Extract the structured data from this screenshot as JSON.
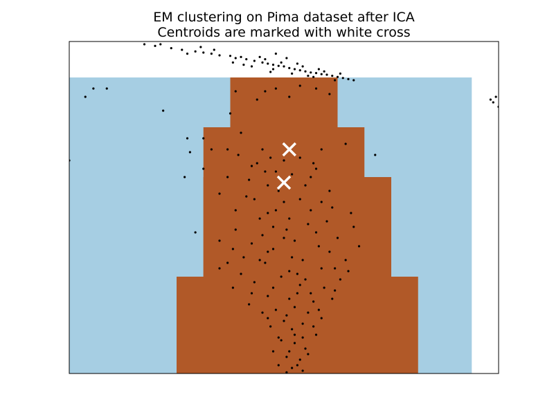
{
  "chart_data": {
    "type": "scatter",
    "title": "EM clustering on Pima dataset after ICA",
    "subtitle": "Centroids are marked with white cross",
    "xlabel": "",
    "ylabel": "",
    "xlim": [
      -4.0,
      4.0
    ],
    "ylim": [
      -5.0,
      1.0
    ],
    "grid": false,
    "axis_ticks": false,
    "background_regions": {
      "colors": {
        "cluster_0": "#a6cee3",
        "cluster_1": "#b15928",
        "outside": "#ffffff"
      },
      "cells": [
        {
          "x0": -4.0,
          "x1": 3.5,
          "y0": -5.0,
          "y1": 0.35,
          "cluster": "cluster_0"
        },
        {
          "x0": -1.0,
          "x1": 1.0,
          "y0": -5.0,
          "y1": 0.35,
          "cluster": "cluster_1"
        },
        {
          "x0": -1.5,
          "x1": 1.5,
          "y0": -5.0,
          "y1": -0.55,
          "cluster": "cluster_1"
        },
        {
          "x0": -1.5,
          "x1": 2.0,
          "y0": -5.0,
          "y1": -1.45,
          "cluster": "cluster_1"
        },
        {
          "x0": -2.0,
          "x1": 2.5,
          "y0": -5.0,
          "y1": -3.25,
          "cluster": "cluster_1"
        }
      ]
    },
    "centroids": [
      {
        "x": 0.1,
        "y": -0.95
      },
      {
        "x": 0.0,
        "y": -1.55
      }
    ],
    "series": [
      {
        "color": "#000000",
        "points": [
          [
            -2.6,
            0.95
          ],
          [
            -2.4,
            0.92
          ],
          [
            -2.1,
            0.88
          ],
          [
            -1.9,
            0.85
          ],
          [
            -1.65,
            0.82
          ],
          [
            -1.5,
            0.8
          ],
          [
            -1.35,
            0.78
          ],
          [
            -1.2,
            0.75
          ],
          [
            -1.0,
            0.74
          ],
          [
            -0.9,
            0.7
          ],
          [
            -0.8,
            0.72
          ],
          [
            -0.7,
            0.68
          ],
          [
            -0.55,
            0.65
          ],
          [
            -0.4,
            0.62
          ],
          [
            -0.3,
            0.6
          ],
          [
            -0.2,
            0.58
          ],
          [
            -0.1,
            0.56
          ],
          [
            0.0,
            0.55
          ],
          [
            0.1,
            0.52
          ],
          [
            0.2,
            0.5
          ],
          [
            0.3,
            0.48
          ],
          [
            0.4,
            0.46
          ],
          [
            0.5,
            0.44
          ],
          [
            0.6,
            0.43
          ],
          [
            0.7,
            0.41
          ],
          [
            0.8,
            0.4
          ],
          [
            0.9,
            0.38
          ],
          [
            1.0,
            0.36
          ],
          [
            1.1,
            0.34
          ],
          [
            1.2,
            0.32
          ],
          [
            1.3,
            0.3
          ],
          [
            -0.6,
            0.55
          ],
          [
            -0.2,
            0.5
          ],
          [
            0.15,
            0.42
          ],
          [
            0.45,
            0.38
          ],
          [
            -0.35,
            0.68
          ],
          [
            0.25,
            0.6
          ],
          [
            0.65,
            0.5
          ],
          [
            -1.55,
            0.9
          ],
          [
            -1.8,
            0.78
          ],
          [
            0.05,
            0.7
          ],
          [
            0.35,
            0.55
          ],
          [
            0.75,
            0.46
          ],
          [
            -0.05,
            0.62
          ],
          [
            -0.45,
            0.72
          ],
          [
            -0.95,
            0.62
          ],
          [
            -1.3,
            0.85
          ],
          [
            -2.3,
            0.95
          ],
          [
            0.55,
            0.36
          ],
          [
            1.05,
            0.42
          ],
          [
            -0.25,
            0.45
          ],
          [
            -0.75,
            0.58
          ],
          [
            -0.15,
            0.78
          ],
          [
            0.95,
            0.3
          ],
          [
            -3.55,
            0.15
          ],
          [
            -3.7,
            0.0
          ],
          [
            -3.3,
            0.15
          ],
          [
            3.85,
            -0.05
          ],
          [
            3.95,
            0.0
          ],
          [
            3.9,
            -0.1
          ],
          [
            4.0,
            -0.18
          ],
          [
            -0.15,
            0.15
          ],
          [
            0.3,
            0.2
          ],
          [
            0.6,
            0.15
          ],
          [
            0.85,
            0.05
          ],
          [
            0.1,
            0.0
          ],
          [
            -0.35,
            0.1
          ],
          [
            -0.5,
            -0.05
          ],
          [
            -0.9,
            0.1
          ],
          [
            -1.0,
            -0.3
          ],
          [
            -0.8,
            -0.65
          ],
          [
            -1.35,
            -0.95
          ],
          [
            -1.05,
            -0.95
          ],
          [
            -0.85,
            -1.05
          ],
          [
            -0.5,
            -1.2
          ],
          [
            -0.4,
            -0.95
          ],
          [
            -0.6,
            -1.25
          ],
          [
            0.3,
            -1.1
          ],
          [
            0.6,
            -1.3
          ],
          [
            0.7,
            -0.95
          ],
          [
            0.5,
            -1.45
          ],
          [
            -1.75,
            -1.0
          ],
          [
            -1.85,
            -1.45
          ],
          [
            -1.5,
            -1.3
          ],
          [
            -1.8,
            -0.75
          ],
          [
            -1.5,
            -0.75
          ],
          [
            1.15,
            -0.85
          ],
          [
            1.7,
            -1.05
          ],
          [
            -2.25,
            -0.25
          ],
          [
            -4.0,
            -1.15
          ],
          [
            -1.65,
            -2.45
          ],
          [
            -1.2,
            -1.75
          ],
          [
            -0.7,
            -1.8
          ],
          [
            -0.3,
            -2.1
          ],
          [
            0.0,
            -1.9
          ],
          [
            0.5,
            -2.05
          ],
          [
            0.8,
            -2.25
          ],
          [
            -0.9,
            -2.4
          ],
          [
            -0.4,
            -2.5
          ],
          [
            0.2,
            -2.6
          ],
          [
            0.6,
            -2.45
          ],
          [
            1.0,
            -2.55
          ],
          [
            1.4,
            -2.7
          ],
          [
            -1.2,
            -2.6
          ],
          [
            -0.75,
            -2.9
          ],
          [
            -0.2,
            -2.75
          ],
          [
            0.35,
            -2.95
          ],
          [
            0.85,
            -2.8
          ],
          [
            1.15,
            -2.95
          ],
          [
            -0.35,
            -3.0
          ],
          [
            0.1,
            -3.15
          ],
          [
            -0.55,
            -3.35
          ],
          [
            0.4,
            -3.3
          ],
          [
            0.75,
            -3.45
          ],
          [
            1.05,
            -3.3
          ],
          [
            -1.2,
            -3.1
          ],
          [
            -0.95,
            -3.45
          ],
          [
            -0.3,
            -3.6
          ],
          [
            0.25,
            -3.55
          ],
          [
            0.55,
            -3.7
          ],
          [
            0.9,
            -3.65
          ],
          [
            -0.15,
            -3.85
          ],
          [
            0.05,
            -3.95
          ],
          [
            0.45,
            -3.9
          ],
          [
            0.7,
            -4.0
          ],
          [
            -0.25,
            -4.15
          ],
          [
            0.15,
            -4.2
          ],
          [
            0.35,
            -4.1
          ],
          [
            -0.1,
            -4.35
          ],
          [
            0.2,
            -4.45
          ],
          [
            0.4,
            -4.55
          ],
          [
            0.6,
            -4.3
          ],
          [
            -0.2,
            -4.6
          ],
          [
            0.05,
            -4.7
          ],
          [
            0.3,
            -4.75
          ],
          [
            0.15,
            -4.9
          ],
          [
            0.05,
            -4.98
          ],
          [
            0.25,
            -4.85
          ],
          [
            -0.3,
            -1.6
          ],
          [
            -0.1,
            -1.7
          ],
          [
            0.1,
            -2.2
          ],
          [
            0.3,
            -1.85
          ],
          [
            -0.2,
            -2.35
          ],
          [
            0.0,
            -2.55
          ],
          [
            0.15,
            -2.9
          ],
          [
            -0.05,
            -3.25
          ],
          [
            0.3,
            -3.4
          ],
          [
            0.1,
            -3.65
          ],
          [
            -0.4,
            -3.9
          ],
          [
            0.55,
            -4.15
          ],
          [
            -0.05,
            -4.4
          ],
          [
            0.35,
            -4.35
          ],
          [
            -0.45,
            -2.2
          ],
          [
            0.45,
            -2.3
          ],
          [
            0.65,
            -2.7
          ],
          [
            -0.6,
            -2.65
          ],
          [
            0.95,
            -3.1
          ],
          [
            -0.8,
            -3.2
          ],
          [
            -1.05,
            -1.45
          ],
          [
            -0.65,
            -1.5
          ],
          [
            -0.15,
            -1.35
          ],
          [
            0.4,
            -1.6
          ],
          [
            0.85,
            -1.7
          ],
          [
            1.25,
            -2.1
          ],
          [
            -0.45,
            -2.95
          ],
          [
            0.25,
            -3.2
          ],
          [
            0.0,
            -4.05
          ],
          [
            0.1,
            -4.6
          ],
          [
            -0.3,
            -4.0
          ],
          [
            0.5,
            -3.55
          ],
          [
            1.2,
            -3.15
          ],
          [
            -0.6,
            -3.55
          ],
          [
            0.7,
            -3.1
          ],
          [
            -0.9,
            -2.05
          ],
          [
            0.9,
            -2.0
          ],
          [
            -0.35,
            -1.35
          ],
          [
            0.55,
            -1.2
          ],
          [
            -0.65,
            -3.75
          ],
          [
            0.65,
            -3.85
          ],
          [
            0.2,
            -4.3
          ],
          [
            -0.1,
            -4.85
          ],
          [
            0.35,
            -4.95
          ],
          [
            0.0,
            -1.15
          ],
          [
            -0.25,
            -1.1
          ],
          [
            0.15,
            -1.4
          ],
          [
            -0.55,
            -1.85
          ],
          [
            0.7,
            -1.9
          ],
          [
            -0.95,
            -2.75
          ],
          [
            1.3,
            -2.35
          ],
          [
            -1.05,
            -3.0
          ],
          [
            0.95,
            -3.5
          ],
          [
            -0.15,
            -2.05
          ],
          [
            0.05,
            -2.4
          ],
          [
            -0.3,
            -2.8
          ],
          [
            0.2,
            -3.8
          ],
          [
            -0.2,
            -3.45
          ],
          [
            0.45,
            -4.65
          ]
        ]
      }
    ]
  }
}
